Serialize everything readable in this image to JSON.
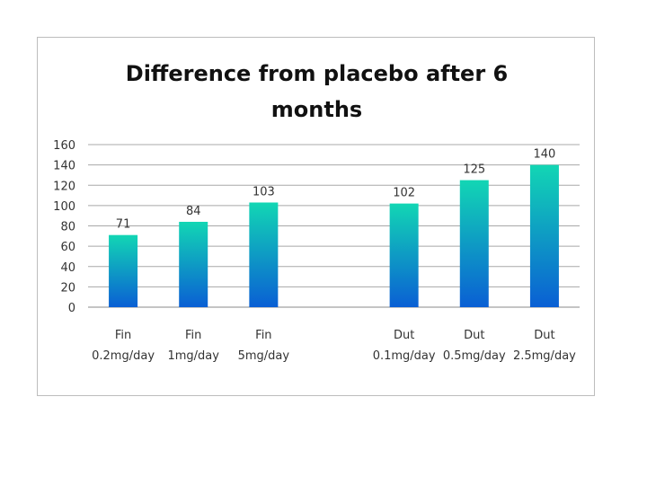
{
  "chart_data": {
    "type": "bar",
    "title_lines": [
      "Difference from placebo after 6",
      "months"
    ],
    "categories": [
      [
        "Fin",
        "0.2mg/day"
      ],
      [
        "Fin",
        "1mg/day"
      ],
      [
        "Fin",
        "5mg/day"
      ],
      [
        "",
        ""
      ],
      [
        "Dut",
        "0.1mg/day"
      ],
      [
        "Dut",
        "0.5mg/day"
      ],
      [
        "Dut",
        "2.5mg/day"
      ]
    ],
    "values": [
      71,
      84,
      103,
      null,
      102,
      125,
      140
    ],
    "ylim": [
      0,
      160
    ],
    "yticks": [
      0,
      20,
      40,
      60,
      80,
      100,
      120,
      140,
      160
    ],
    "grid": true,
    "legend": "none",
    "bar_gradient": [
      "#12d6b4",
      "#0a5fd4"
    ]
  }
}
